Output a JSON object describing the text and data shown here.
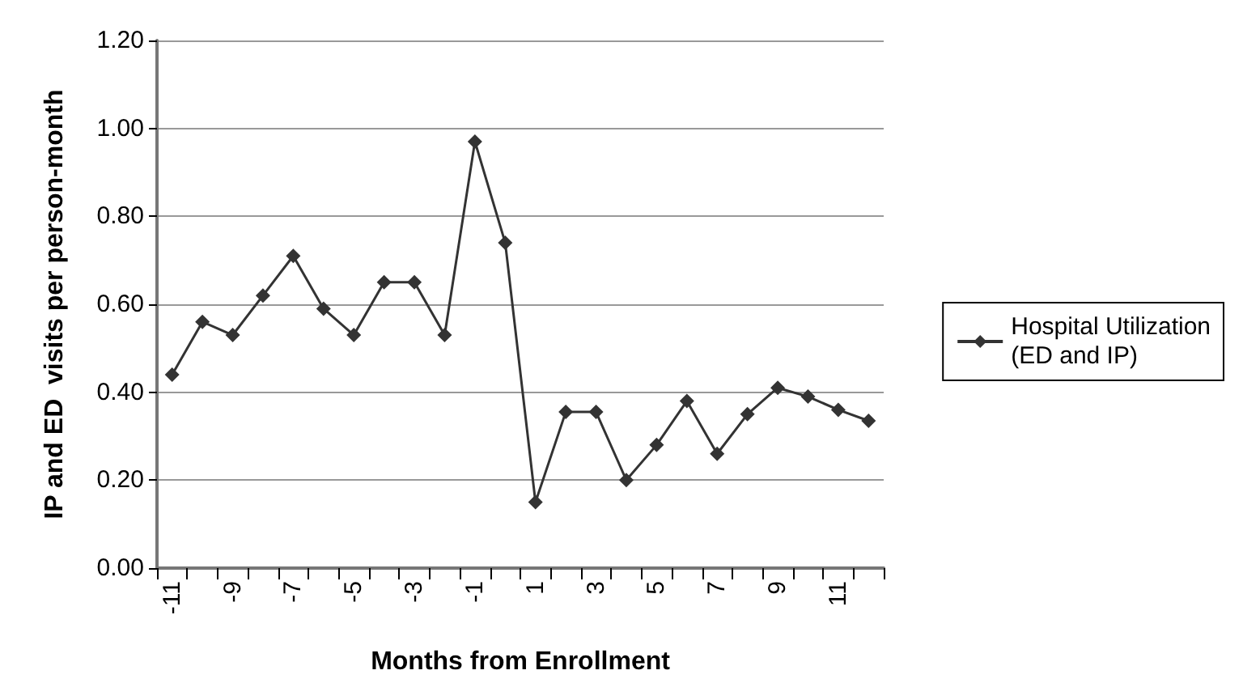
{
  "chart_data": {
    "type": "line",
    "xlabel": "Months from Enrollment",
    "ylabel": "IP and ED  visits per person-month",
    "categories": [
      "-11",
      null,
      "-9",
      null,
      "-7",
      null,
      "-5",
      null,
      "-3",
      null,
      "-1",
      null,
      "1",
      null,
      "3",
      null,
      "5",
      null,
      "7",
      null,
      "9",
      null,
      "11",
      null
    ],
    "series": [
      {
        "name": "Hospital Utilization\n(ED and IP)",
        "color": "#333333",
        "values": [
          0.44,
          0.56,
          0.53,
          0.62,
          0.71,
          0.59,
          0.53,
          0.65,
          0.65,
          0.53,
          0.97,
          0.74,
          0.15,
          0.355,
          0.355,
          0.2,
          0.28,
          0.38,
          0.26,
          0.35,
          0.41,
          0.39,
          0.36,
          0.335
        ]
      }
    ],
    "ylim": [
      0,
      1.2
    ],
    "yticks": [
      {
        "value": 0,
        "label": "0.00"
      },
      {
        "value": 0.2,
        "label": "0.20"
      },
      {
        "value": 0.4,
        "label": "0.40"
      },
      {
        "value": 0.6,
        "label": "0.60"
      },
      {
        "value": 0.8,
        "label": "0.80"
      },
      {
        "value": 1,
        "label": "1.00"
      },
      {
        "value": 1.2,
        "label": "1.20"
      }
    ],
    "grid": "y",
    "legend": "right",
    "marker": "diamond",
    "line_style": "solid"
  }
}
